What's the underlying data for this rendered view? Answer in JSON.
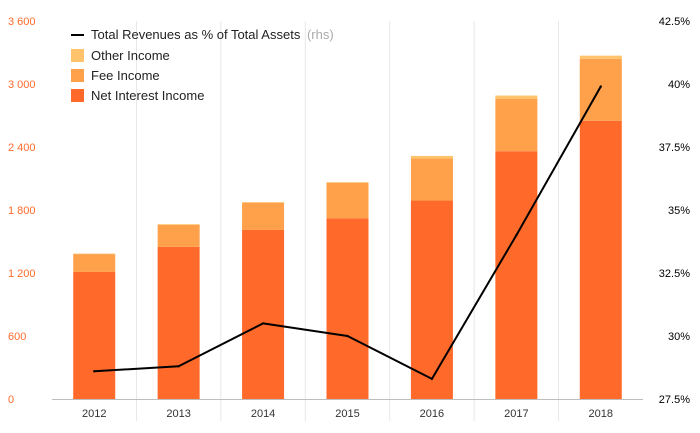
{
  "colors": {
    "net_interest": "#ff6a2b",
    "fee": "#ffa04a",
    "other": "#ffc46b",
    "line": "#000000",
    "left_axis_text": "#ff6a2b",
    "right_axis_text": "#000000",
    "grid": "#e6e6e6",
    "axis": "#bdbdbd",
    "rhs_note": "#aaaaaa"
  },
  "legend": {
    "line_label": "Total Revenues as % of Total Assets",
    "line_note": "(rhs)",
    "other_label": "Other Income",
    "fee_label": "Fee Income",
    "net_label": "Net Interest Income"
  },
  "chart_data": {
    "type": "bar",
    "stacked": true,
    "categories": [
      "2012",
      "2013",
      "2014",
      "2015",
      "2016",
      "2017",
      "2018"
    ],
    "series": [
      {
        "name": "Net Interest Income",
        "values": [
          1210,
          1450,
          1610,
          1720,
          1890,
          2360,
          2650
        ]
      },
      {
        "name": "Fee Income",
        "values": [
          170,
          210,
          260,
          340,
          400,
          500,
          590
        ]
      },
      {
        "name": "Other Income",
        "values": [
          5,
          5,
          5,
          5,
          25,
          30,
          30
        ]
      }
    ],
    "line_series": {
      "name": "Total Revenues as % of Total Assets",
      "axis": "right",
      "values": [
        28.6,
        28.8,
        30.5,
        30.0,
        28.3,
        34.0,
        39.9
      ]
    },
    "left_axis": {
      "min": 0,
      "max": 3600,
      "ticks": [
        "0",
        "600",
        "1 200",
        "1 800",
        "2 400",
        "3 000",
        "3 600"
      ]
    },
    "right_axis": {
      "min": 27.5,
      "max": 42.5,
      "ticks": [
        "27.5%",
        "30%",
        "32.5%",
        "35%",
        "37.5%",
        "40%",
        "42.5%"
      ]
    },
    "grid": "vertical-separators",
    "legend_position": "top-left"
  }
}
